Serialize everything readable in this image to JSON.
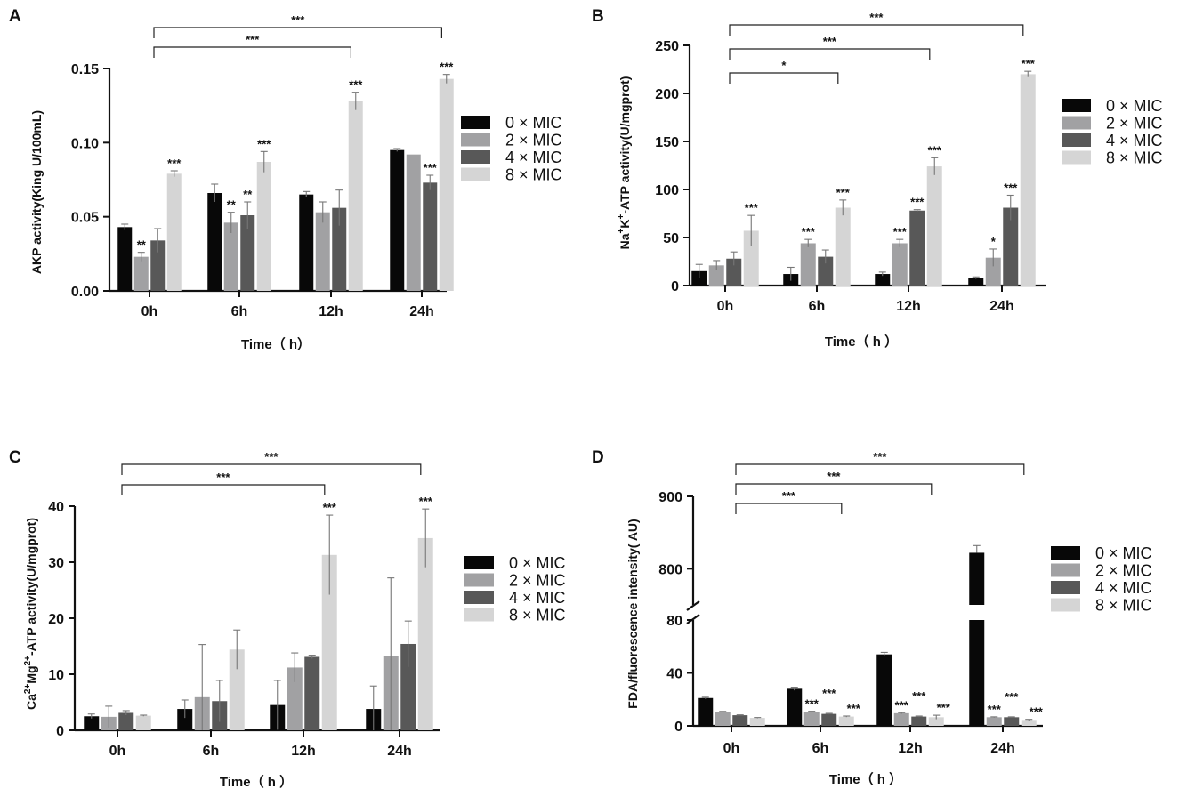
{
  "figure": {
    "legend": [
      "0 × MIC",
      "2 × MIC",
      "4 × MIC",
      "8 × MIC"
    ],
    "colors": [
      "#080808",
      "#a1a1a3",
      "#585858",
      "#d5d5d5"
    ]
  },
  "chart_data": [
    {
      "panel": "A",
      "type": "bar",
      "categories": [
        "0h",
        "6h",
        "12h",
        "24h"
      ],
      "series": [
        {
          "name": "0 × MIC",
          "values": [
            0.043,
            0.066,
            0.065,
            0.095
          ],
          "errors": [
            0.002,
            0.006,
            0.002,
            0.001
          ]
        },
        {
          "name": "2 × MIC",
          "values": [
            0.023,
            0.046,
            0.053,
            0.092
          ],
          "errors": [
            0.003,
            0.007,
            0.007,
            0.0
          ]
        },
        {
          "name": "4 × MIC",
          "values": [
            0.034,
            0.051,
            0.056,
            0.073
          ],
          "errors": [
            0.008,
            0.009,
            0.012,
            0.005
          ]
        },
        {
          "name": "8 × MIC",
          "values": [
            0.079,
            0.087,
            0.128,
            0.143
          ],
          "errors": [
            0.002,
            0.007,
            0.006,
            0.003
          ]
        }
      ],
      "stars": [
        [
          "",
          "",
          "",
          ""
        ],
        [
          "**",
          "**",
          "",
          ""
        ],
        [
          "",
          "**",
          "",
          "***"
        ],
        [
          "***",
          "***",
          "***",
          "***"
        ]
      ],
      "brackets": [
        {
          "from": "0h",
          "to": "12h",
          "label": "***"
        },
        {
          "from": "0h",
          "to": "24h",
          "label": "***"
        }
      ],
      "title": "",
      "xlabel": "Time（ h）",
      "ylabel": "AKP activity(King U/100mL)",
      "ylim": [
        0,
        0.15
      ],
      "yticks": [
        "0.00",
        "0.05",
        "0.10",
        "0.15"
      ]
    },
    {
      "panel": "B",
      "type": "bar",
      "categories": [
        "0h",
        "6h",
        "12h",
        "24h"
      ],
      "series": [
        {
          "name": "0 × MIC",
          "values": [
            15,
            12,
            12,
            8
          ],
          "errors": [
            7,
            7,
            2,
            1
          ]
        },
        {
          "name": "2 × MIC",
          "values": [
            21,
            44,
            44,
            29
          ],
          "errors": [
            5,
            4,
            4,
            9
          ]
        },
        {
          "name": "4 × MIC",
          "values": [
            28,
            30,
            78,
            81
          ],
          "errors": [
            7,
            7,
            1,
            13
          ]
        },
        {
          "name": "8 × MIC",
          "values": [
            57,
            81,
            124,
            220
          ],
          "errors": [
            16,
            8,
            9,
            3
          ]
        }
      ],
      "stars": [
        [
          "",
          "",
          "",
          ""
        ],
        [
          "",
          "***",
          "***",
          "*"
        ],
        [
          "",
          "",
          "***",
          "***"
        ],
        [
          "***",
          "***",
          "***",
          "***"
        ]
      ],
      "brackets": [
        {
          "from": "0h",
          "to": "6h",
          "label": "*"
        },
        {
          "from": "0h",
          "to": "12h",
          "label": "***"
        },
        {
          "from": "0h",
          "to": "24h",
          "label": "***"
        }
      ],
      "title": "",
      "xlabel": "Time（ h ）",
      "ylabel_parts": {
        "a": "Na",
        "a_sup": "+",
        "b": "K",
        "b_sup": "+",
        "rest": "-ATP activity(U/mgprot)"
      },
      "ylim": [
        0,
        250
      ],
      "yticks": [
        "0",
        "50",
        "100",
        "150",
        "200",
        "250"
      ]
    },
    {
      "panel": "C",
      "type": "bar",
      "categories": [
        "0h",
        "6h",
        "12h",
        "24h"
      ],
      "series": [
        {
          "name": "0 × MIC",
          "values": [
            2.5,
            3.8,
            4.5,
            3.8
          ],
          "errors": [
            0.4,
            1.6,
            4.4,
            4.1
          ]
        },
        {
          "name": "2 × MIC",
          "values": [
            2.4,
            5.9,
            11.2,
            13.3
          ],
          "errors": [
            1.9,
            9.4,
            2.6,
            13.9
          ]
        },
        {
          "name": "4 × MIC",
          "values": [
            3.1,
            5.2,
            13.1,
            15.4
          ],
          "errors": [
            0.4,
            3.7,
            0.3,
            4.1
          ]
        },
        {
          "name": "8 × MIC",
          "values": [
            2.6,
            14.4,
            31.3,
            34.3
          ],
          "errors": [
            0.1,
            3.5,
            7.1,
            5.2
          ]
        }
      ],
      "stars": [
        [
          "",
          "",
          "",
          ""
        ],
        [
          "",
          "",
          "",
          ""
        ],
        [
          "",
          "",
          "",
          ""
        ],
        [
          "",
          "",
          "***",
          "***"
        ]
      ],
      "brackets": [
        {
          "from": "0h",
          "to": "12h",
          "label": "***"
        },
        {
          "from": "0h",
          "to": "24h",
          "label": "***"
        }
      ],
      "title": "",
      "xlabel": "Time（ h ）",
      "ylabel_parts": {
        "a": "Ca",
        "a_sup": "2+",
        "b": "Mg",
        "b_sup": "2+",
        "rest": "-ATP activity(U/mgprot)"
      },
      "ylim": [
        0,
        40
      ],
      "yticks": [
        "0",
        "10",
        "20",
        "30",
        "40"
      ]
    },
    {
      "panel": "D",
      "type": "bar",
      "axis_break": {
        "lower": [
          0,
          80
        ],
        "upper": [
          750,
          900
        ]
      },
      "categories": [
        "0h",
        "6h",
        "12h",
        "24h"
      ],
      "series": [
        {
          "name": "0 × MIC",
          "values": [
            21,
            28,
            54,
            822
          ],
          "errors": [
            0.6,
            1.2,
            1.5,
            10
          ]
        },
        {
          "name": "2 × MIC",
          "values": [
            10.5,
            10.5,
            9.5,
            6.5
          ],
          "errors": [
            0.4,
            0.5,
            0.4,
            0.3
          ]
        },
        {
          "name": "4 × MIC",
          "values": [
            8,
            9,
            7,
            6.5
          ],
          "errors": [
            0.3,
            0.4,
            0.4,
            0.3
          ]
        },
        {
          "name": "8 × MIC",
          "values": [
            6,
            7,
            6.5,
            4.5
          ],
          "errors": [
            0.3,
            0.4,
            1.5,
            0.4
          ]
        }
      ],
      "stars": [
        [
          "",
          "",
          "",
          ""
        ],
        [
          "",
          "***",
          "***",
          "***"
        ],
        [
          "",
          "***",
          "***",
          "***"
        ],
        [
          "",
          "***",
          "***",
          "***"
        ]
      ],
      "brackets": [
        {
          "from": "0h",
          "to": "6h",
          "label": "***"
        },
        {
          "from": "0h",
          "to": "12h",
          "label": "***"
        },
        {
          "from": "0h",
          "to": "24h",
          "label": "***"
        }
      ],
      "title": "",
      "xlabel": "Time（ h ）",
      "ylabel": "FDA/fluorescence intensity( AU)",
      "ylim": [
        0,
        900
      ],
      "yticks_lower": [
        "0",
        "40",
        "80"
      ],
      "yticks_upper": [
        "800",
        "900"
      ]
    }
  ]
}
